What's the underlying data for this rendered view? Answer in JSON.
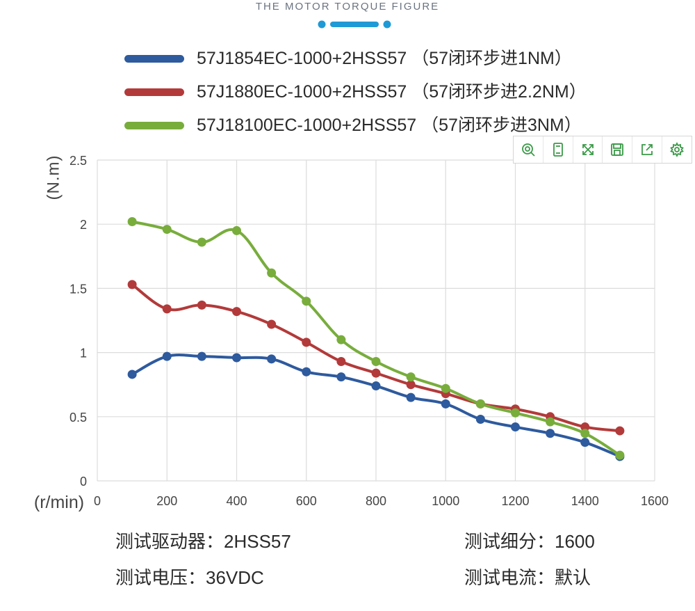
{
  "header": {
    "title": "THE MOTOR TORQUE FIGURE"
  },
  "toolbox": {
    "tools": [
      {
        "name": "zoom-icon"
      },
      {
        "name": "data-view-icon"
      },
      {
        "name": "fullscreen-icon"
      },
      {
        "name": "save-icon"
      },
      {
        "name": "share-icon"
      },
      {
        "name": "settings-icon"
      }
    ],
    "color": "#3a9a47"
  },
  "chart_data": {
    "type": "line",
    "title": "THE MOTOR TORQUE FIGURE",
    "xlabel": "(r/min)",
    "ylabel": "(N.m)",
    "xlim": [
      0,
      1600
    ],
    "ylim": [
      0,
      2.5
    ],
    "x_ticks": [
      "0",
      "200",
      "400",
      "600",
      "800",
      "1000",
      "1200",
      "1400",
      "1600"
    ],
    "y_ticks": [
      "0",
      "0.5",
      "1",
      "1.5",
      "2",
      "2.5"
    ],
    "grid": true,
    "legend_position": "top",
    "x": [
      100,
      200,
      300,
      400,
      500,
      600,
      700,
      800,
      900,
      1000,
      1100,
      1200,
      1300,
      1400,
      1500
    ],
    "series": [
      {
        "name": "57J1854EC-1000+2HSS57  （57闭环步进1NM）",
        "color": "#2e5a9e",
        "values": [
          0.83,
          0.97,
          0.97,
          0.96,
          0.95,
          0.85,
          0.81,
          0.74,
          0.65,
          0.6,
          0.48,
          0.42,
          0.37,
          0.3,
          0.19
        ]
      },
      {
        "name": "57J1880EC-1000+2HSS57  （57闭环步进2.2NM）",
        "color": "#b33a3a",
        "values": [
          1.53,
          1.34,
          1.37,
          1.32,
          1.22,
          1.08,
          0.93,
          0.84,
          0.75,
          0.68,
          0.6,
          0.56,
          0.5,
          0.42,
          0.39
        ]
      },
      {
        "name": "57J18100EC-1000+2HSS57  （57闭环步进3NM）",
        "color": "#78ad3c",
        "values": [
          2.02,
          1.96,
          1.86,
          1.95,
          1.62,
          1.4,
          1.1,
          0.93,
          0.81,
          0.72,
          0.6,
          0.53,
          0.46,
          0.37,
          0.2
        ]
      }
    ]
  },
  "info": {
    "driver_label": "测试驱动器：",
    "driver_value": "2HSS57",
    "microstep_label": "测试细分：",
    "microstep_value": "1600",
    "voltage_label": "测试电压：",
    "voltage_value": "36VDC",
    "current_label": "测试电流：",
    "current_value": "默认"
  }
}
